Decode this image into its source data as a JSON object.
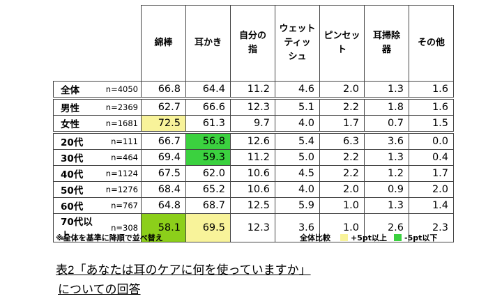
{
  "headers": [
    "綿棒",
    "耳かき",
    "自分の\n指",
    "ウェット\nティッ\nシュ",
    "ピンセッ\nト",
    "耳掃除\n器",
    "その他"
  ],
  "rows": [
    {
      "seg": "全体",
      "n": "n=4050",
      "v": [
        "66.8",
        "64.4",
        "11.2",
        "4.6",
        "2.0",
        "1.3",
        "1.6"
      ],
      "hl": [
        "",
        "",
        "",
        "",
        "",
        "",
        ""
      ]
    },
    {
      "seg": "男性",
      "n": "n=2369",
      "v": [
        "62.7",
        "66.6",
        "12.3",
        "5.1",
        "2.2",
        "1.8",
        "1.6"
      ],
      "hl": [
        "",
        "",
        "",
        "",
        "",
        "",
        ""
      ]
    },
    {
      "seg": "女性",
      "n": "n=1681",
      "v": [
        "72.5",
        "61.3",
        "9.7",
        "4.0",
        "1.7",
        "0.7",
        "1.5"
      ],
      "hl": [
        "y",
        "",
        "",
        "",
        "",
        "",
        ""
      ]
    },
    {
      "seg": "20代",
      "n": "n=111",
      "v": [
        "66.7",
        "56.8",
        "12.6",
        "5.4",
        "6.3",
        "3.6",
        "0.0"
      ],
      "hl": [
        "",
        "g",
        "",
        "",
        "",
        "",
        ""
      ]
    },
    {
      "seg": "30代",
      "n": "n=464",
      "v": [
        "69.4",
        "59.3",
        "11.2",
        "5.0",
        "2.2",
        "1.3",
        "0.4"
      ],
      "hl": [
        "",
        "g",
        "",
        "",
        "",
        "",
        ""
      ]
    },
    {
      "seg": "40代",
      "n": "n=1124",
      "v": [
        "67.5",
        "62.0",
        "10.6",
        "4.5",
        "2.2",
        "1.2",
        "1.7"
      ],
      "hl": [
        "",
        "",
        "",
        "",
        "",
        "",
        ""
      ]
    },
    {
      "seg": "50代",
      "n": "n=1276",
      "v": [
        "68.4",
        "65.2",
        "10.6",
        "4.0",
        "2.0",
        "0.9",
        "2.0"
      ],
      "hl": [
        "",
        "",
        "",
        "",
        "",
        "",
        ""
      ]
    },
    {
      "seg": "60代",
      "n": "n=767",
      "v": [
        "64.8",
        "68.7",
        "12.5",
        "5.9",
        "1.0",
        "1.3",
        "1.4"
      ],
      "hl": [
        "",
        "",
        "",
        "",
        "",
        "",
        ""
      ]
    },
    {
      "seg": "70代以上",
      "n": "n=308",
      "v": [
        "58.1",
        "69.5",
        "12.3",
        "3.6",
        "1.0",
        "2.6",
        "2.3"
      ],
      "hl": [
        "lg",
        "y",
        "",
        "",
        "",
        "",
        ""
      ]
    }
  ],
  "notes": {
    "left": "※全体を基準に降順で並べ替え",
    "legend_title": "全体比較",
    "legend_plus": "+5pt以上",
    "legend_minus": "-5pt以下",
    "color_plus": "#f8f39a",
    "color_minus": "#3bd13f"
  },
  "caption": {
    "line1": "表2「あなたは耳のケアに何を使っていますか」",
    "line2": "についての回答"
  }
}
